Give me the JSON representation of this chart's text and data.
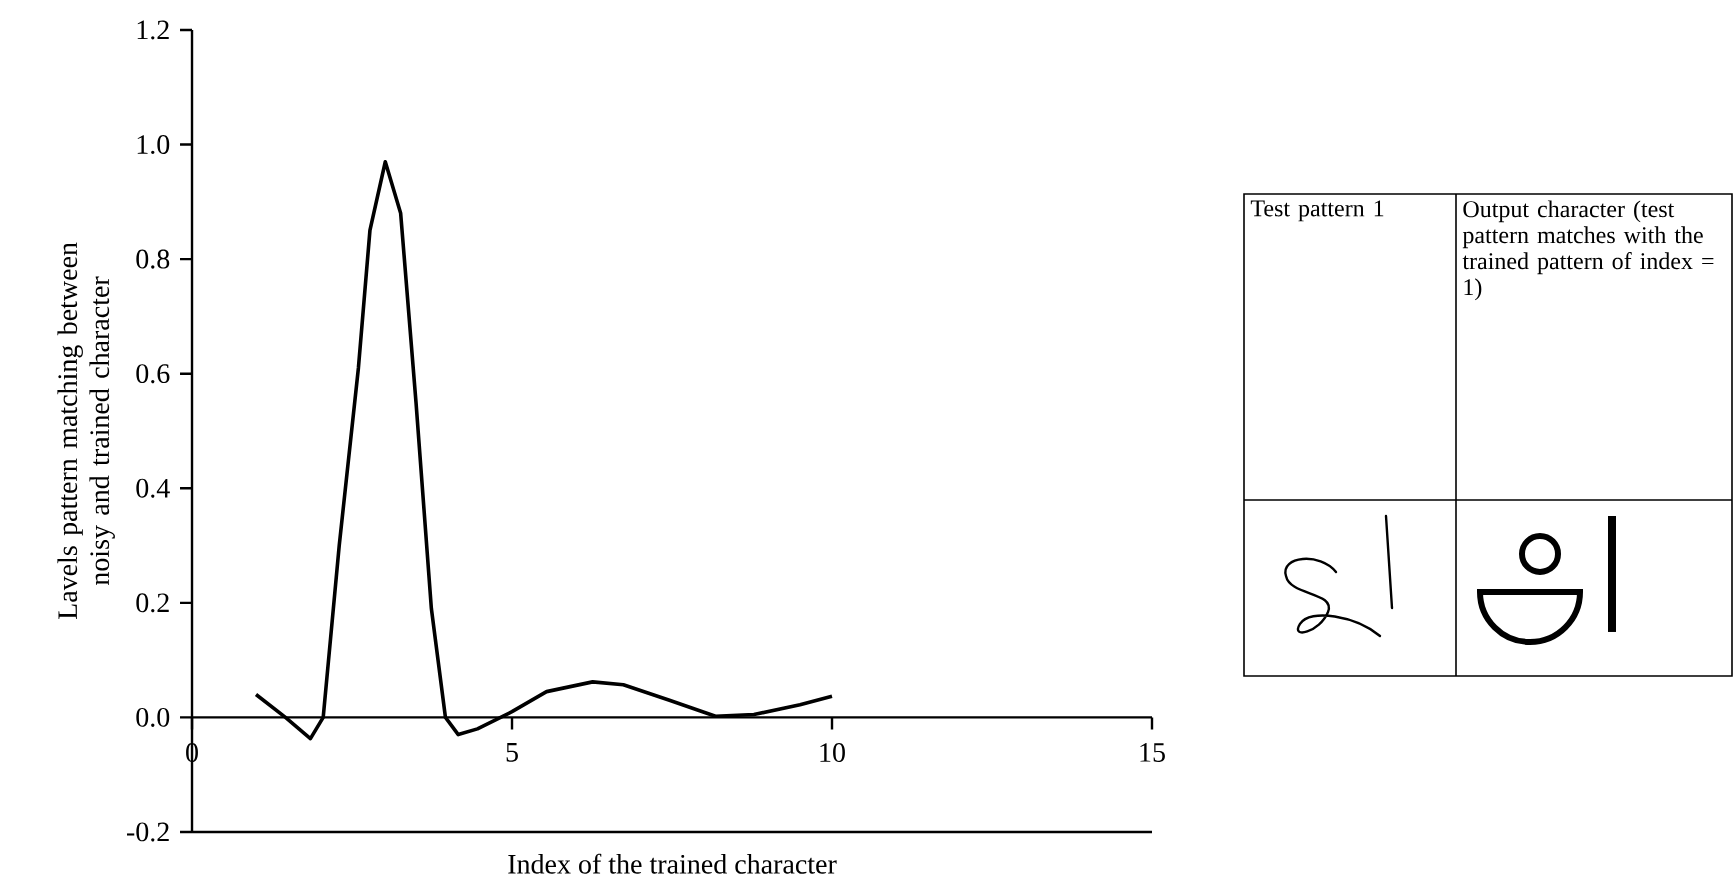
{
  "chart_data": [
    {
      "type": "line",
      "xlabel": "Index of the trained character",
      "ylabel": "Lavels pattern matching between noisy and trained character",
      "xlim": [
        0,
        15
      ],
      "ylim": [
        -0.2,
        1.2
      ],
      "xticks": [
        0,
        5,
        10,
        15
      ],
      "yticks": [
        {
          "value": -0.2,
          "label": "-0.2"
        },
        {
          "value": 0,
          "label": "0.0"
        },
        {
          "value": 0.2,
          "label": "0.2"
        },
        {
          "value": 0.4,
          "label": "0.4"
        },
        {
          "value": 0.6,
          "label": "0.6"
        },
        {
          "value": 0.8,
          "label": "0.8"
        },
        {
          "value": 1.0,
          "label": "1.0"
        },
        {
          "value": 1.2,
          "label": "1.2"
        }
      ],
      "series": [
        {
          "color": "#000000",
          "x": [
            1.0,
            1.46,
            1.85,
            2.05,
            2.3,
            2.6,
            2.78,
            3.02,
            3.26,
            3.5,
            3.74,
            3.96,
            4.16,
            4.46,
            5.0,
            5.54,
            6.26,
            6.74,
            7.46,
            8.18,
            8.78,
            9.5,
            10.0
          ],
          "values": [
            0.04,
            0.0,
            -0.037,
            0.0,
            0.3,
            0.61,
            0.85,
            0.97,
            0.88,
            0.55,
            0.19,
            0.0,
            -0.03,
            -0.02,
            0.01,
            0.045,
            0.062,
            0.057,
            0.03,
            0.002,
            0.005,
            0.022,
            0.037
          ]
        }
      ]
    },
    {
      "type": "other",
      "annotations": [
        "Test pattern 1",
        "Output character (test pattern matches with the trained pattern of index = 1)"
      ]
    }
  ]
}
